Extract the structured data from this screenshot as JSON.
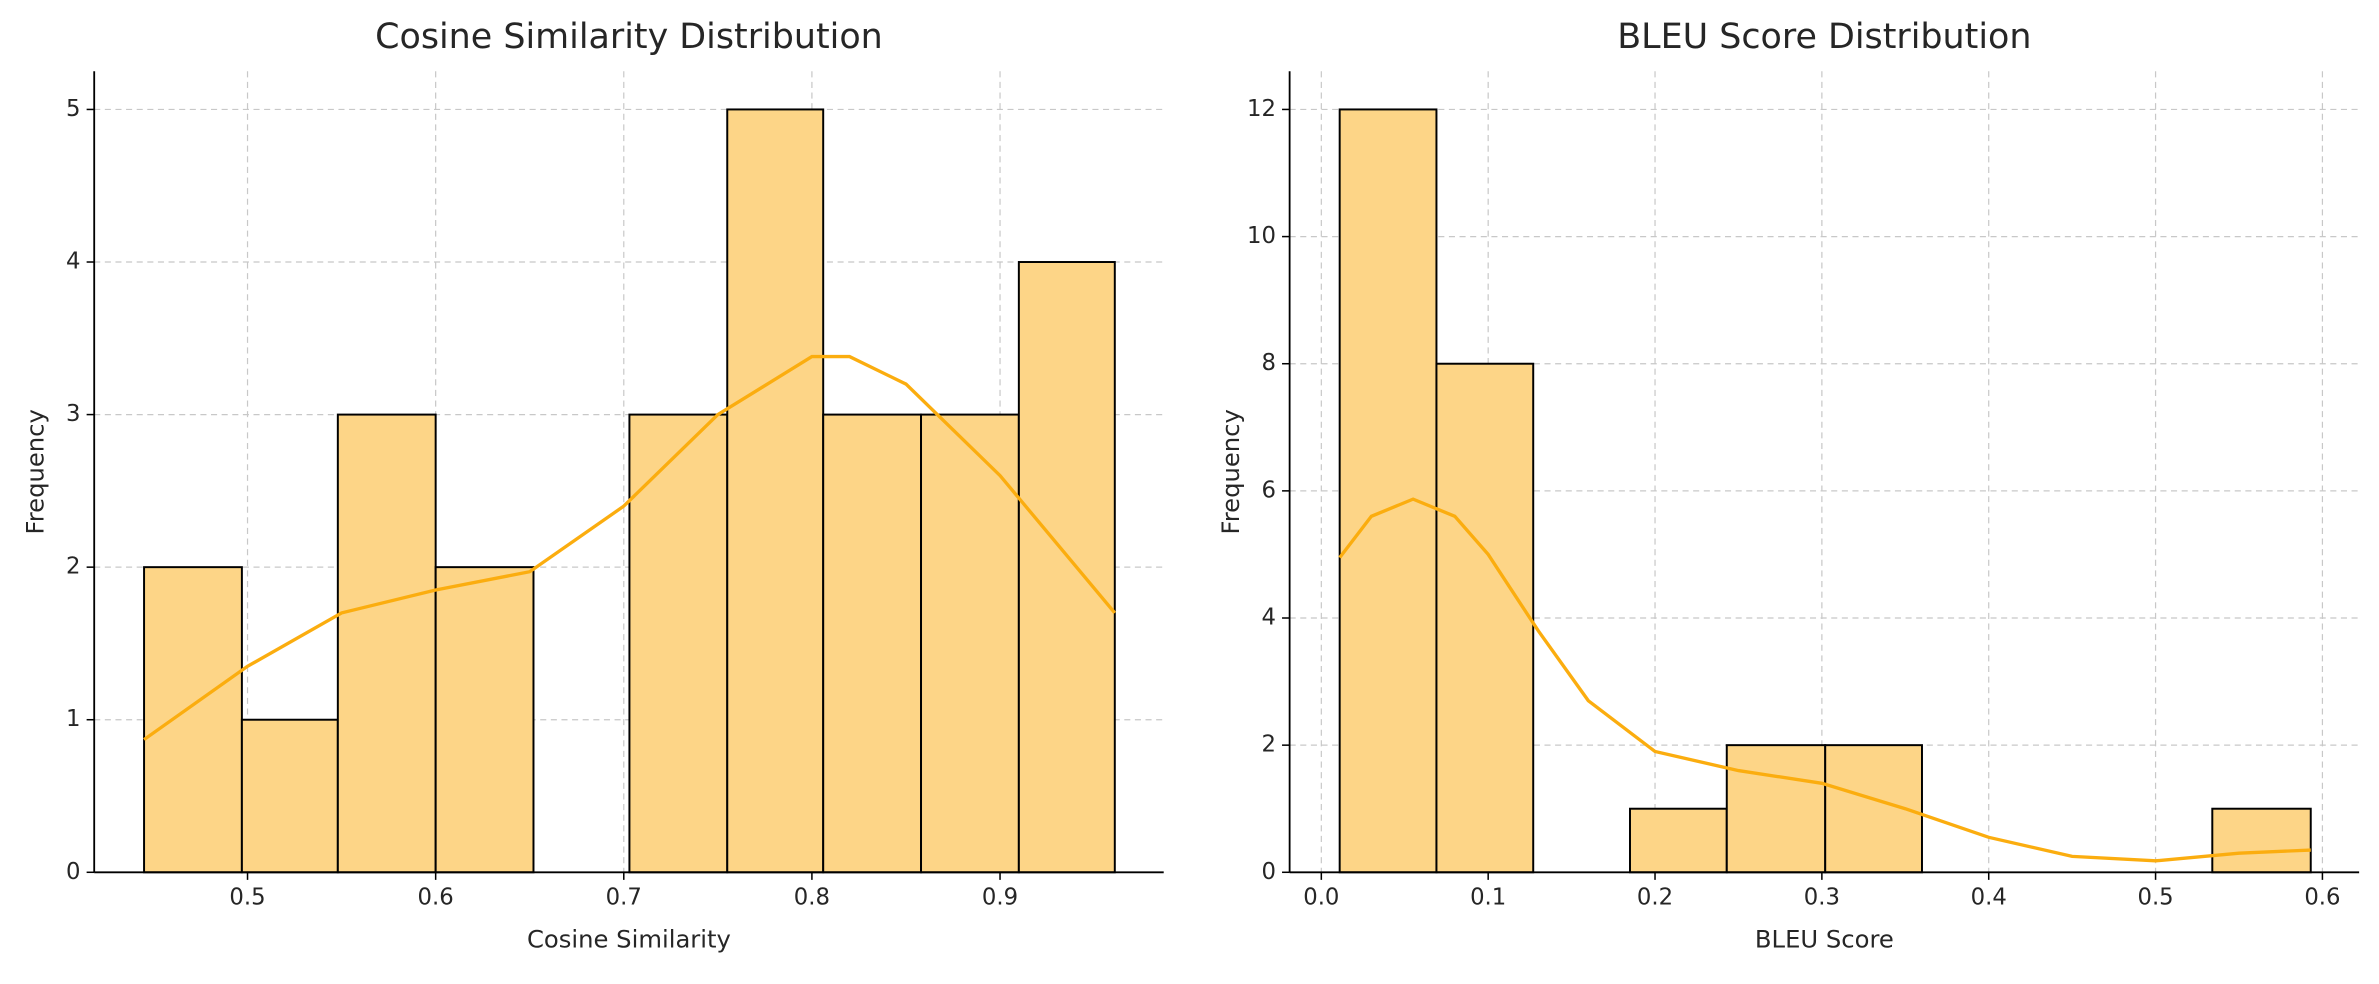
{
  "chart_data": [
    {
      "type": "histogram",
      "title": "Cosine Similarity Distribution",
      "x_label": "Cosine Similarity",
      "y_label": "Frequency",
      "bins": [
        0.445,
        0.497,
        0.548,
        0.6,
        0.652,
        0.703,
        0.755,
        0.806,
        0.858,
        0.91,
        0.961
      ],
      "values": [
        2,
        1,
        3,
        2,
        0,
        3,
        5,
        3,
        3,
        4
      ],
      "color": "#fdd587",
      "edge_color": "#000000",
      "kde": {
        "color": "#fbad0f",
        "x": [
          0.445,
          0.5,
          0.55,
          0.6,
          0.65,
          0.7,
          0.75,
          0.8,
          0.82,
          0.85,
          0.9,
          0.961
        ],
        "y": [
          0.87,
          1.35,
          1.7,
          1.85,
          1.97,
          2.4,
          3.0,
          3.38,
          3.38,
          3.2,
          2.6,
          1.7
        ]
      },
      "xlim": [
        0.4185,
        0.987
      ],
      "ylim": [
        0,
        5.25
      ],
      "xticks": [
        0.5,
        0.6,
        0.7,
        0.8,
        0.9
      ],
      "yticks": [
        0,
        1,
        2,
        3,
        4,
        5
      ],
      "grid": true
    },
    {
      "type": "histogram",
      "title": "BLEU Score Distribution",
      "x_label": "BLEU Score",
      "y_label": "Frequency",
      "bins": [
        0.011,
        0.069,
        0.127,
        0.185,
        0.243,
        0.302,
        0.36,
        0.418,
        0.476,
        0.534,
        0.593
      ],
      "values": [
        12,
        8,
        0,
        1,
        2,
        2,
        0,
        0,
        0,
        1
      ],
      "color": "#fdd587",
      "edge_color": "#000000",
      "kde": {
        "color": "#fbad0f",
        "x": [
          0.011,
          0.03,
          0.055,
          0.08,
          0.1,
          0.13,
          0.16,
          0.2,
          0.25,
          0.3,
          0.35,
          0.4,
          0.45,
          0.5,
          0.55,
          0.593
        ],
        "y": [
          4.95,
          5.6,
          5.87,
          5.6,
          5.0,
          3.8,
          2.7,
          1.9,
          1.6,
          1.4,
          1.0,
          0.55,
          0.25,
          0.18,
          0.3,
          0.35
        ]
      },
      "xlim": [
        -0.019,
        0.622
      ],
      "ylim": [
        0,
        12.6
      ],
      "xticks": [
        {
          "value": 0,
          "label": "0.0"
        },
        0.1,
        0.2,
        0.3,
        0.4,
        0.5,
        0.6
      ],
      "yticks": [
        0,
        2,
        4,
        6,
        8,
        10,
        12
      ],
      "grid": true
    }
  ]
}
